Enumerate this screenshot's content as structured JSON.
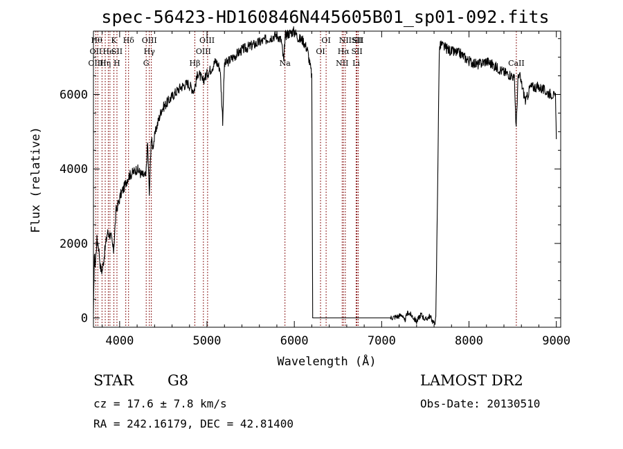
{
  "chart_data": {
    "type": "line",
    "title": "spec-56423-HD160846N445605B01_sp01-092.fits",
    "xlabel": "Wavelength (Å)",
    "ylabel": "Flux (relative)",
    "xlim": [
      3700,
      9050
    ],
    "ylim": [
      -250,
      7700
    ],
    "x_ticks": [
      4000,
      5000,
      6000,
      7000,
      8000,
      9000
    ],
    "y_ticks": [
      0,
      2000,
      4000,
      6000
    ],
    "grid": false,
    "series": [
      {
        "x": [
          3700,
          3710,
          3720,
          3740,
          3760,
          3780,
          3800,
          3830,
          3860,
          3900,
          3930,
          3960,
          3990,
          4010,
          4050,
          4100,
          4150,
          4200,
          4250,
          4300,
          4320,
          4340,
          4360,
          4380,
          4420,
          4480,
          4550,
          4620,
          4700,
          4780,
          4850,
          4900,
          4950,
          5000,
          5050,
          5100,
          5150,
          5180,
          5200,
          5300,
          5400,
          5500,
          5600,
          5700,
          5800,
          5850,
          5880,
          5890,
          5900,
          5950,
          6000,
          6050,
          6100,
          6150,
          6200,
          6210,
          6220,
          6300,
          6400,
          6500,
          6600,
          6700,
          6800,
          6900,
          7000,
          7100,
          7200,
          7230,
          7260,
          7300,
          7350,
          7400,
          7450,
          7500,
          7550,
          7600,
          7620,
          7640,
          7660,
          7680,
          7700,
          7800,
          7900,
          8000,
          8100,
          8200,
          8300,
          8400,
          8500,
          8520,
          8540,
          8560,
          8580,
          8600,
          8650,
          8700,
          8800,
          8900,
          8960,
          8990,
          9000
        ],
        "y": [
          0,
          1700,
          1400,
          2100,
          1900,
          1350,
          1250,
          1800,
          2300,
          2200,
          1800,
          2900,
          3100,
          3300,
          3500,
          3800,
          3900,
          4000,
          3850,
          3800,
          4700,
          3300,
          4800,
          4600,
          5100,
          5600,
          5800,
          6000,
          6200,
          6300,
          6100,
          6600,
          6350,
          6550,
          6700,
          6900,
          6700,
          5300,
          6800,
          7000,
          7200,
          7300,
          7400,
          7500,
          7600,
          7450,
          6850,
          7400,
          7600,
          7650,
          7700,
          7500,
          7450,
          7200,
          6500,
          0,
          0,
          0,
          0,
          0,
          0,
          0,
          0,
          0,
          0,
          0,
          50,
          100,
          -100,
          150,
          50,
          -100,
          100,
          -50,
          50,
          -150,
          -50,
          3400,
          7200,
          7350,
          7300,
          7150,
          7100,
          6900,
          6800,
          6900,
          6750,
          6600,
          6500,
          6400,
          5100,
          6400,
          6500,
          6300,
          5800,
          6200,
          6200,
          6050,
          6000,
          5900,
          4800
        ]
      }
    ],
    "line_markers": [
      {
        "x": 3727,
        "label": "OII"
      },
      {
        "x": 3750,
        "label": "OIII"
      },
      {
        "x": 3798,
        "label": "Hθ"
      },
      {
        "x": 3835,
        "label": "Hη"
      },
      {
        "x": 3870,
        "label": "He"
      },
      {
        "x": 3889,
        "label": "He"
      },
      {
        "x": 3934,
        "label": "K"
      },
      {
        "x": 3969,
        "label": "H"
      },
      {
        "x": 4070,
        "label": "SII"
      },
      {
        "x": 4102,
        "label": "Hδ"
      },
      {
        "x": 4304,
        "label": "G"
      },
      {
        "x": 4340,
        "label": "Hγ"
      },
      {
        "x": 4363,
        "label": "OIII"
      },
      {
        "x": 4861,
        "label": "Hβ"
      },
      {
        "x": 4959,
        "label": "OIII"
      },
      {
        "x": 5007,
        "label": "OIII"
      },
      {
        "x": 5893,
        "label": "Na"
      },
      {
        "x": 6300,
        "label": "OI"
      },
      {
        "x": 6364,
        "label": "OI"
      },
      {
        "x": 6548,
        "label": "NII"
      },
      {
        "x": 6563,
        "label": "Hα"
      },
      {
        "x": 6584,
        "label": "NII"
      },
      {
        "x": 6708,
        "label": "Li"
      },
      {
        "x": 6717,
        "label": "SII"
      },
      {
        "x": 6731,
        "label": "SII"
      },
      {
        "x": 8542,
        "label": "CaII"
      }
    ],
    "marker_label_rows": [
      [
        {
          "x": 3737,
          "label": "Hθ"
        },
        {
          "x": 3934,
          "label": "K"
        },
        {
          "x": 4102,
          "label": "Hδ"
        },
        {
          "x": 4340,
          "label": "OIII"
        },
        {
          "x": 5000,
          "label": "OIII"
        },
        {
          "x": 6364,
          "label": "OI"
        },
        {
          "x": 6584,
          "label": "NII"
        },
        {
          "x": 6717,
          "label": "SII"
        },
        {
          "x": 6731,
          "label": "SII"
        }
      ],
      [
        {
          "x": 3727,
          "label": "OII"
        },
        {
          "x": 3870,
          "label": "He"
        },
        {
          "x": 3969,
          "label": "SII"
        },
        {
          "x": 4340,
          "label": "Hγ"
        },
        {
          "x": 4959,
          "label": "OIII"
        },
        {
          "x": 6300,
          "label": "OI"
        },
        {
          "x": 6563,
          "label": "Hα"
        },
        {
          "x": 6717,
          "label": "SII"
        }
      ],
      [
        {
          "x": 3727,
          "label": "OIII"
        },
        {
          "x": 3835,
          "label": "Hη"
        },
        {
          "x": 3969,
          "label": "H"
        },
        {
          "x": 4304,
          "label": "G"
        },
        {
          "x": 4861,
          "label": "Hβ"
        },
        {
          "x": 5893,
          "label": "Na"
        },
        {
          "x": 6548,
          "label": "NII"
        },
        {
          "x": 6708,
          "label": "Li"
        },
        {
          "x": 8542,
          "label": "CaII"
        }
      ]
    ]
  },
  "info": {
    "class": "STAR",
    "subclass": "G8",
    "cz": "cz = 17.6 ± 7.8 km/s",
    "radec": "RA = 242.16179, DEC =  42.81400",
    "survey": "LAMOST DR2",
    "obsdate": "Obs-Date: 20130510"
  },
  "colors": {
    "marker_line": "#8b1a1a",
    "spectrum": "#000000",
    "axes": "#000000"
  }
}
